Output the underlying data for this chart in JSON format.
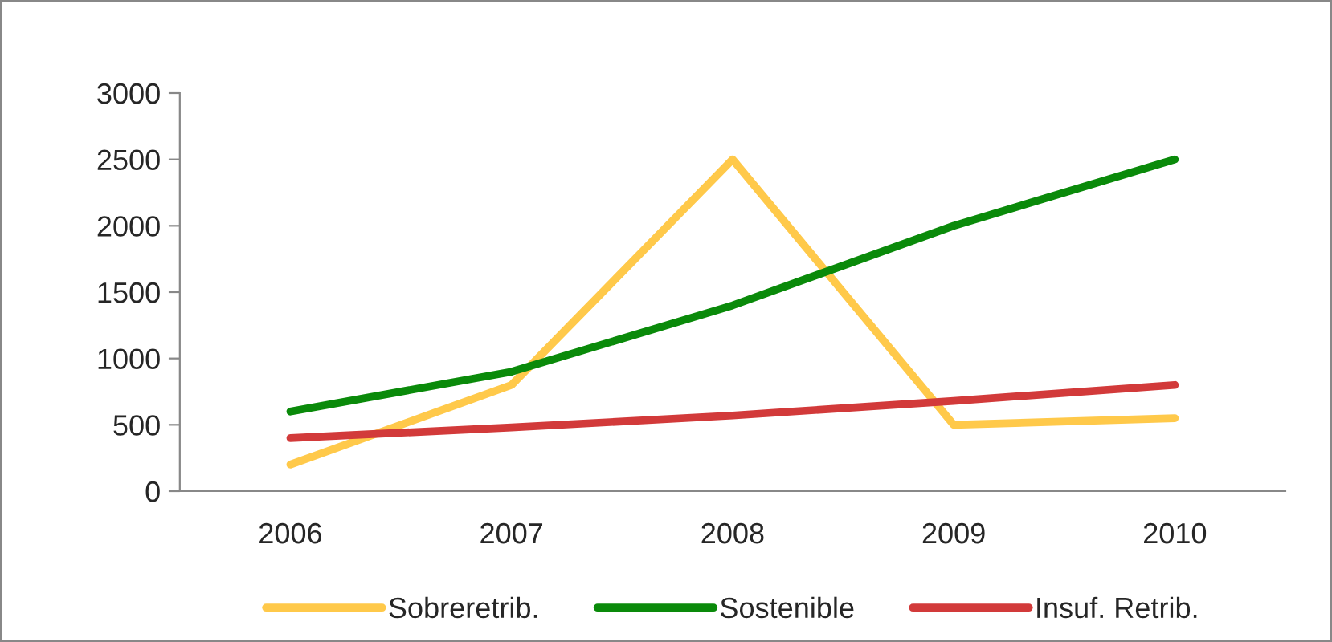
{
  "chart_data": {
    "type": "line",
    "categories": [
      "2006",
      "2007",
      "2008",
      "2009",
      "2010"
    ],
    "series": [
      {
        "name": "Sobreretrib.",
        "color": "#ffc94a",
        "values": [
          200,
          800,
          2500,
          500,
          550
        ]
      },
      {
        "name": "Sostenible",
        "color": "#0a8a0a",
        "values": [
          600,
          900,
          1400,
          2000,
          2500
        ]
      },
      {
        "name": "Insuf. Retrib.",
        "color": "#d23a3a",
        "values": [
          400,
          480,
          570,
          680,
          800
        ]
      }
    ],
    "ylim": [
      0,
      3000
    ],
    "yticks": [
      0,
      500,
      1000,
      1500,
      2000,
      2500,
      3000
    ],
    "grid": false,
    "legend": "bottom",
    "marker": "none",
    "line_style": "solid"
  }
}
